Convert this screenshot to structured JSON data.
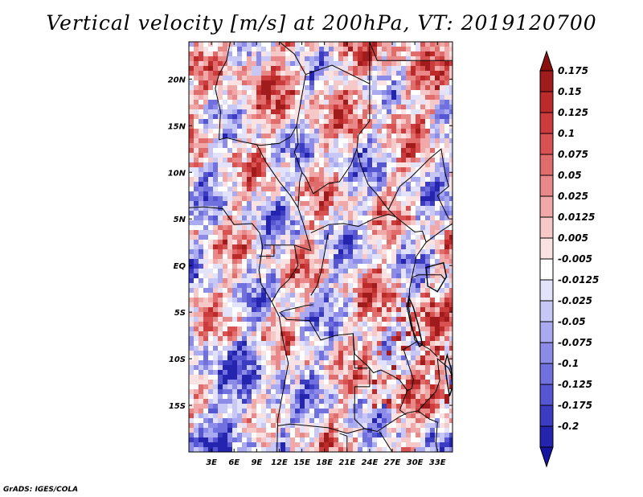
{
  "title": "Vertical velocity [m/s] at 200hPa, VT: 2019120700",
  "credit": "GrADS: IGES/COLA",
  "map": {
    "lon_range": [
      0,
      35
    ],
    "lat_range": [
      -20,
      24
    ],
    "lat_ticks": [
      {
        "value": 20,
        "label": "20N"
      },
      {
        "value": 15,
        "label": "15N"
      },
      {
        "value": 10,
        "label": "10N"
      },
      {
        "value": 5,
        "label": "5N"
      },
      {
        "value": 0,
        "label": "EQ"
      },
      {
        "value": -5,
        "label": "5S"
      },
      {
        "value": -10,
        "label": "10S"
      },
      {
        "value": -15,
        "label": "15S"
      }
    ],
    "lon_ticks": [
      {
        "value": 3,
        "label": "3E"
      },
      {
        "value": 6,
        "label": "6E"
      },
      {
        "value": 9,
        "label": "9E"
      },
      {
        "value": 12,
        "label": "12E"
      },
      {
        "value": 15,
        "label": "15E"
      },
      {
        "value": 18,
        "label": "18E"
      },
      {
        "value": 21,
        "label": "21E"
      },
      {
        "value": 24,
        "label": "24E"
      },
      {
        "value": 27,
        "label": "27E"
      },
      {
        "value": 30,
        "label": "30E"
      },
      {
        "value": 33,
        "label": "33E"
      }
    ]
  },
  "colorbar": {
    "levels": [
      {
        "label": "0.175",
        "color": "#a01c1c"
      },
      {
        "label": "0.15",
        "color": "#bc2a2a"
      },
      {
        "label": "0.125",
        "color": "#cc3c3c"
      },
      {
        "label": "0.1",
        "color": "#d85252"
      },
      {
        "label": "0.075",
        "color": "#e06c6c"
      },
      {
        "label": "0.05",
        "color": "#e88888"
      },
      {
        "label": "0.025",
        "color": "#f0a8a8"
      },
      {
        "label": "0.0125",
        "color": "#f6c8c8"
      },
      {
        "label": "0.005",
        "color": "#fbe2e2"
      },
      {
        "label": "-0.005",
        "color": "#ffffff"
      },
      {
        "label": "-0.0125",
        "color": "#e2e2fb"
      },
      {
        "label": "-0.025",
        "color": "#c8c8f6"
      },
      {
        "label": "-0.05",
        "color": "#aaaaf0"
      },
      {
        "label": "-0.075",
        "color": "#8c8ce8"
      },
      {
        "label": "-0.1",
        "color": "#7070de"
      },
      {
        "label": "-0.125",
        "color": "#5656d2"
      },
      {
        "label": "-0.175",
        "color": "#3c3cc2"
      },
      {
        "label": "-0.2",
        "color": "#2424ae"
      }
    ],
    "bottom_color": "#1414a0",
    "top_color": "#8a1010"
  }
}
